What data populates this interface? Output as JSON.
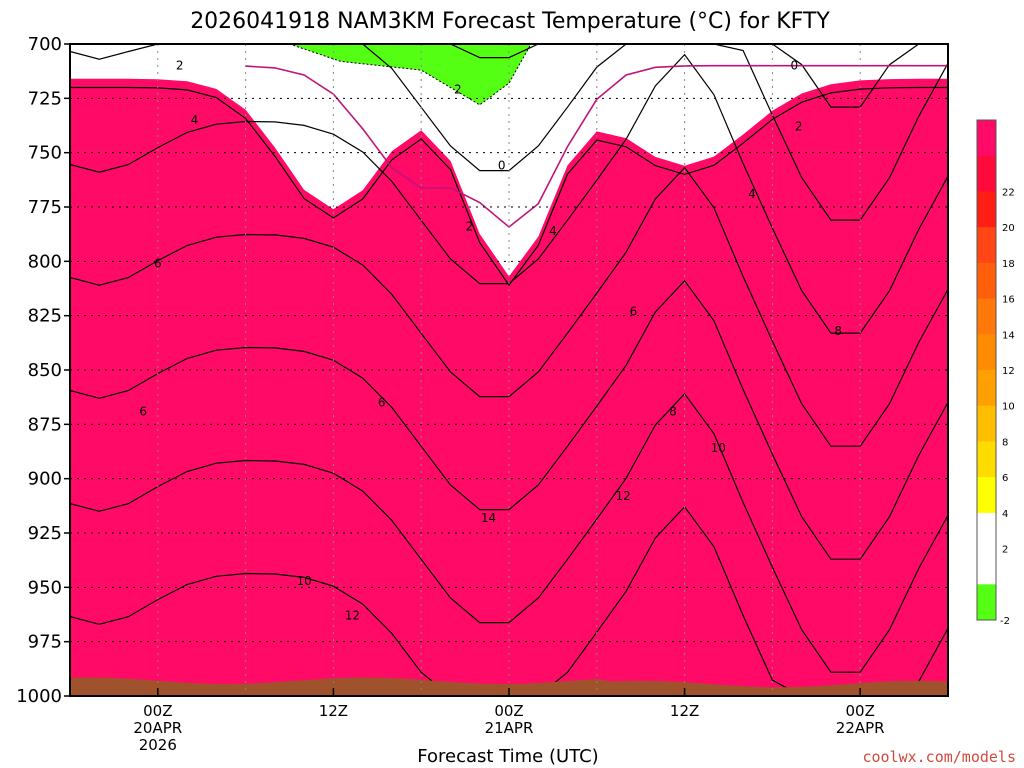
{
  "chart_data": {
    "type": "heatmap",
    "title": "2026041918 NAM3KM Forecast Temperature (°C) for KFTY",
    "xlabel": "Forecast Time (UTC)",
    "ylabel": "",
    "credit": "coolwx.com/models",
    "x_range_hours": [
      -6,
      54
    ],
    "y_levels_hpa": [
      700,
      725,
      750,
      775,
      800,
      825,
      850,
      875,
      900,
      925,
      950,
      975,
      1000
    ],
    "ylim": [
      1000,
      700
    ],
    "x_ticks": [
      {
        "hour": 0,
        "lines": [
          "00Z",
          "20APR",
          "2026"
        ]
      },
      {
        "hour": 12,
        "lines": [
          "12Z"
        ]
      },
      {
        "hour": 24,
        "lines": [
          "00Z",
          "21APR"
        ]
      },
      {
        "hour": 36,
        "lines": [
          "12Z"
        ]
      },
      {
        "hour": 48,
        "lines": [
          "00Z",
          "22APR"
        ]
      }
    ],
    "grid": "dotted",
    "colorbar": {
      "ticks": [
        22,
        20,
        18,
        16,
        14,
        12,
        10,
        8,
        6,
        4,
        2,
        -2
      ],
      "bins": [
        {
          "min": 22,
          "max": 24,
          "color": "#ff0a66"
        },
        {
          "min": 20,
          "max": 22,
          "color": "#ff0a3c"
        },
        {
          "min": 18,
          "max": 20,
          "color": "#ff1e14"
        },
        {
          "min": 16,
          "max": 18,
          "color": "#ff4614"
        },
        {
          "min": 14,
          "max": 16,
          "color": "#ff5f0a"
        },
        {
          "min": 12,
          "max": 14,
          "color": "#ff780a"
        },
        {
          "min": 10,
          "max": 12,
          "color": "#ff8c00"
        },
        {
          "min": 8,
          "max": 10,
          "color": "#ffa000"
        },
        {
          "min": 6,
          "max": 8,
          "color": "#ffbe00"
        },
        {
          "min": 4,
          "max": 6,
          "color": "#ffdc00"
        },
        {
          "min": 2,
          "max": 4,
          "color": "#ffff00"
        },
        {
          "min": 0,
          "max": 2,
          "color": "#ffffff"
        },
        {
          "min": -2,
          "max": 0,
          "color": "#ffffff"
        },
        {
          "min": -4,
          "max": -2,
          "color": "#55ff14"
        }
      ]
    },
    "ground_color": "#a0522d",
    "zero_isotherm_color": "#c0147a",
    "contour_labels": [
      {
        "text": "2",
        "hour": 1.5,
        "level": 710
      },
      {
        "text": "4",
        "hour": 2.5,
        "level": 735
      },
      {
        "text": "6",
        "hour": 0.0,
        "level": 801
      },
      {
        "text": "6",
        "hour": -1.0,
        "level": 869
      },
      {
        "text": "2",
        "hour": 20.5,
        "level": 721
      },
      {
        "text": "0",
        "hour": 23.5,
        "level": 756
      },
      {
        "text": "2",
        "hour": 21.3,
        "level": 784
      },
      {
        "text": "4",
        "hour": 27.0,
        "level": 786
      },
      {
        "text": "6",
        "hour": 32.5,
        "level": 823
      },
      {
        "text": "6",
        "hour": 15.3,
        "level": 865
      },
      {
        "text": "0",
        "hour": 43.5,
        "level": 710
      },
      {
        "text": "2",
        "hour": 43.8,
        "level": 738
      },
      {
        "text": "4",
        "hour": 40.6,
        "level": 769
      },
      {
        "text": "8",
        "hour": 46.5,
        "level": 832
      },
      {
        "text": "8",
        "hour": 35.2,
        "level": 869
      },
      {
        "text": "10",
        "hour": 38.3,
        "level": 886
      },
      {
        "text": "12",
        "hour": 31.8,
        "level": 908
      },
      {
        "text": "14",
        "hour": 22.6,
        "level": 918
      },
      {
        "text": "10",
        "hour": 10.0,
        "level": 947
      },
      {
        "text": "12",
        "hour": 13.3,
        "level": 963
      }
    ]
  }
}
